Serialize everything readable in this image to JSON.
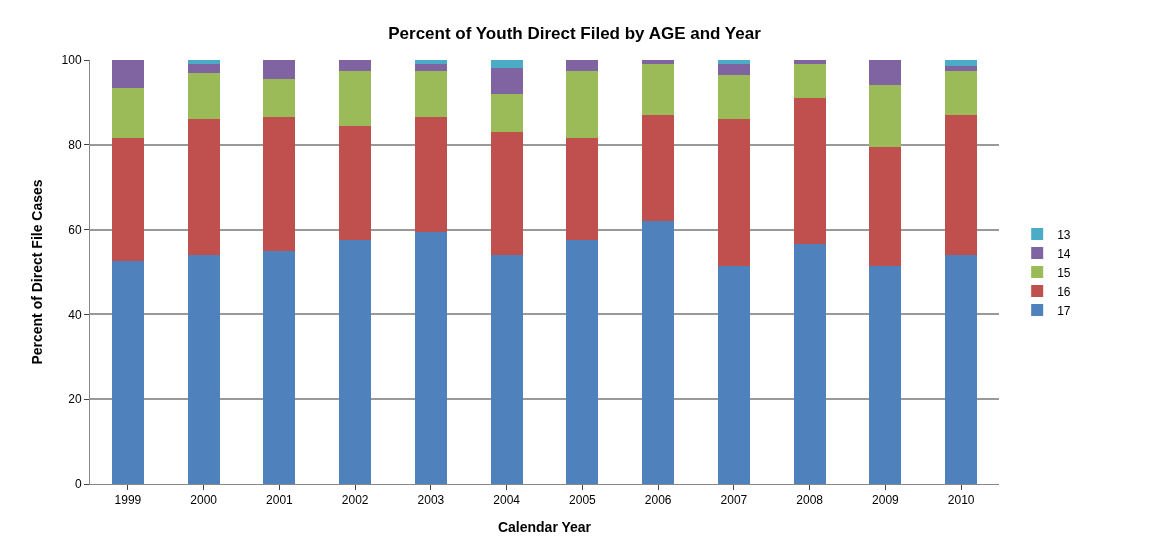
{
  "chart_data": {
    "type": "bar",
    "stacked": true,
    "title": "Percent of Youth Direct Filed by AGE and Year",
    "xlabel": "Calendar Year",
    "ylabel": "Percent of Direct File Cases",
    "categories": [
      "1999",
      "2000",
      "2001",
      "2002",
      "2003",
      "2004",
      "2005",
      "2006",
      "2007",
      "2008",
      "2009",
      "2010"
    ],
    "series": [
      {
        "name": "17",
        "color": "#4f81bd",
        "values": [
          52.5,
          54,
          55,
          57.5,
          59.5,
          54,
          57.5,
          62,
          51.5,
          56.5,
          51.5,
          54
        ]
      },
      {
        "name": "16",
        "color": "#c0504d",
        "values": [
          29,
          32,
          31.5,
          27,
          27,
          29,
          24,
          25,
          34.5,
          34.5,
          28,
          33
        ]
      },
      {
        "name": "15",
        "color": "#9bbb59",
        "values": [
          12,
          11,
          9,
          13,
          11,
          9,
          16,
          12,
          10.5,
          8,
          14.5,
          10.5
        ]
      },
      {
        "name": "14",
        "color": "#8064a2",
        "values": [
          6.5,
          2,
          4.5,
          2.5,
          1.5,
          6,
          2.5,
          1,
          2.5,
          1,
          6,
          1
        ]
      },
      {
        "name": "13",
        "color": "#4bacc6",
        "values": [
          0,
          1,
          0,
          0,
          1,
          2,
          0,
          0,
          1,
          0,
          0,
          1.5
        ]
      }
    ],
    "ylim": [
      0,
      100
    ],
    "yticks": [
      0,
      20,
      40,
      60,
      80,
      100
    ],
    "grid": "y",
    "legend": "right"
  }
}
